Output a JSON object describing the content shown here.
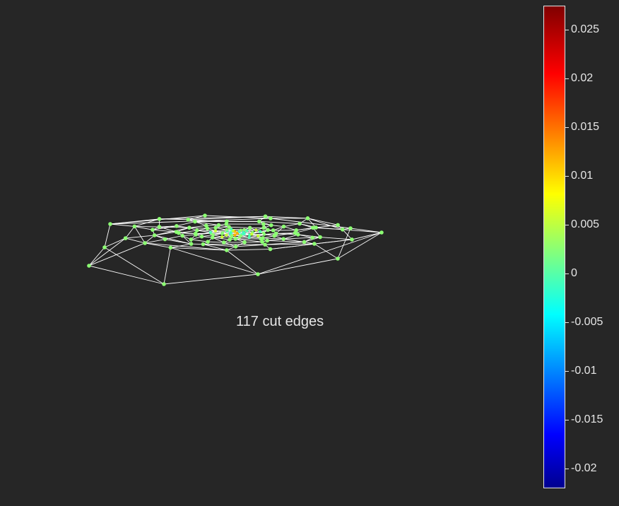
{
  "caption": "117 cut edges",
  "colorbar": {
    "colormap": "jet",
    "range": [
      -0.022,
      0.0275
    ],
    "tick_labels": [
      "0.025",
      "0.02",
      "0.015",
      "0.01",
      "0.005",
      "0",
      "-0.005",
      "-0.01",
      "-0.015",
      "-0.02"
    ],
    "tick_values": [
      0.025,
      0.02,
      0.015,
      0.01,
      0.005,
      0,
      -0.005,
      -0.01,
      -0.015,
      -0.02
    ]
  },
  "colors": {
    "background": "#262626",
    "edge": "#ffffff",
    "node": "#8cff73",
    "text": "#e6e6e6"
  }
}
